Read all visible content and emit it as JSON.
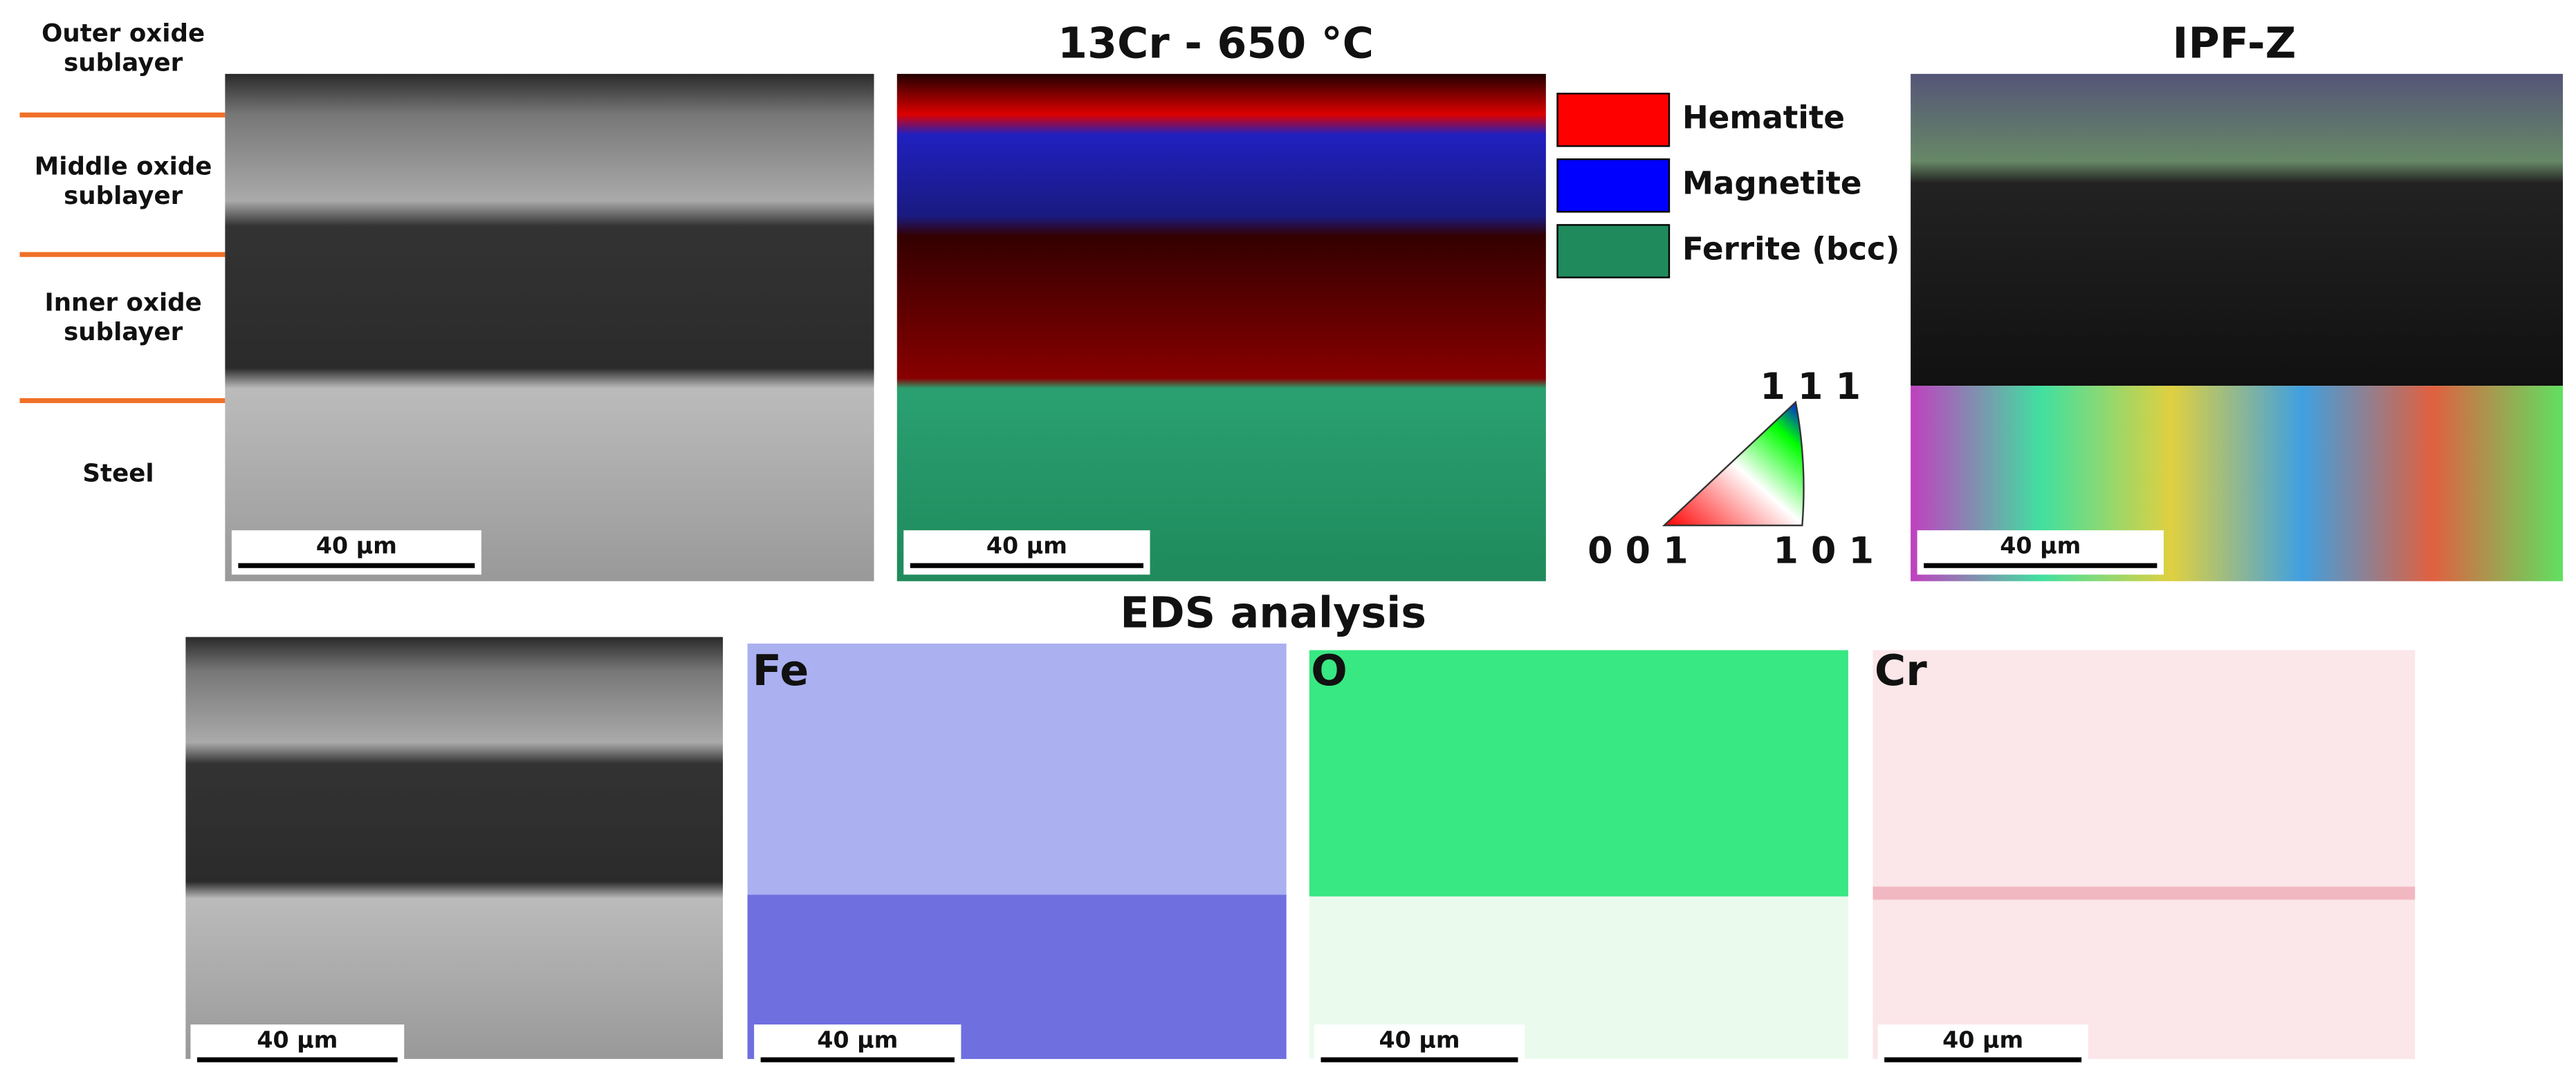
{
  "layers": {
    "outer": "Outer oxide\nsublayer",
    "middle": "Middle oxide\nsublayer",
    "inner": "Inner oxide\nsublayer",
    "steel": "Steel"
  },
  "phase_map": {
    "title": "13Cr - 650 °C",
    "legend": [
      "Hematite",
      "Magnetite",
      "Ferrite (bcc)"
    ]
  },
  "ipf": {
    "title": "IPF-Z",
    "corners": [
      "1 1 1",
      "0 0 1",
      "1 0 1"
    ]
  },
  "eds": {
    "title": "EDS analysis",
    "elements": [
      "Fe",
      "O",
      "Cr"
    ]
  },
  "scale_bars": [
    "40 µm",
    "40 µm",
    "40 µm",
    "40 µm",
    "40 µm",
    "40 µm",
    "40 µm"
  ]
}
